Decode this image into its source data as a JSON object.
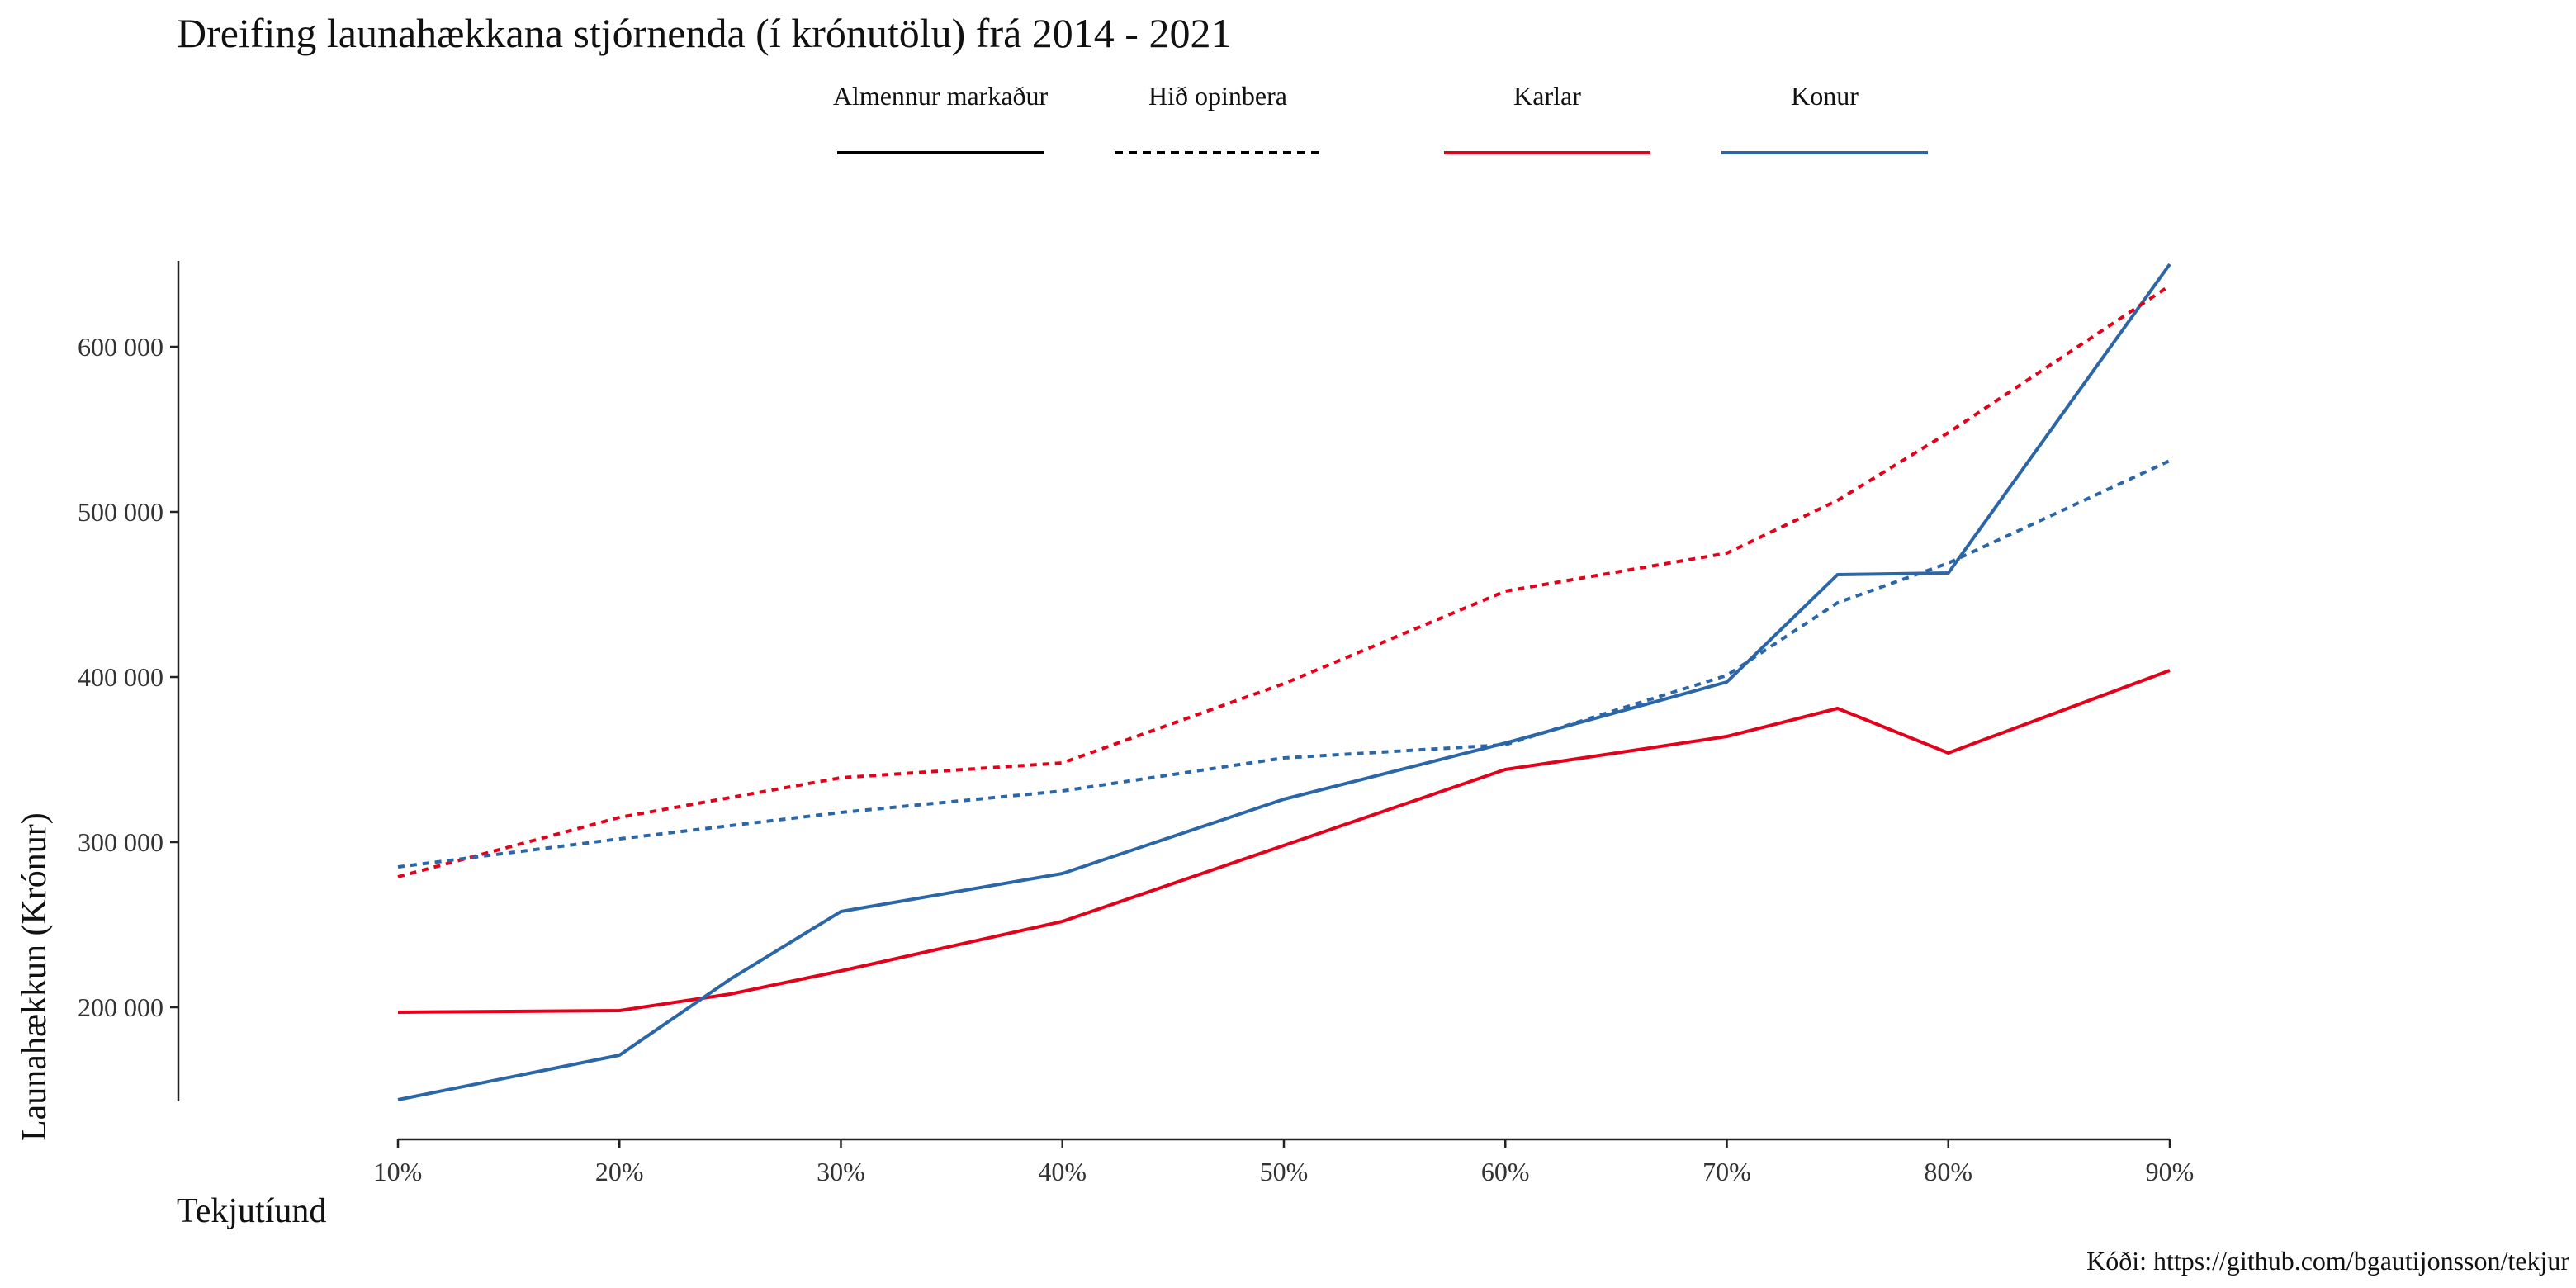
{
  "chart_data": {
    "type": "line",
    "title": "Dreifing launahækkana stjórnenda (í krónutölu) frá 2014 - 2021",
    "xlabel": "Tekjutíund",
    "ylabel": "Launahækkun (Krónur)",
    "caption": "Kóði: https://github.com/bgautijonsson/tekjur",
    "x_ticks": [
      "10%",
      "20%",
      "30%",
      "40%",
      "50%",
      "60%",
      "70%",
      "80%",
      "90%"
    ],
    "xlim": [
      10,
      90
    ],
    "y_ticks": [
      {
        "value": 200000,
        "label": "200 000"
      },
      {
        "value": 300000,
        "label": "300 000"
      },
      {
        "value": 400000,
        "label": "400 000"
      },
      {
        "value": 500000,
        "label": "500 000"
      },
      {
        "value": 600000,
        "label": "600 000"
      }
    ],
    "ylim": [
      143000,
      652000
    ],
    "grid": false,
    "legend": {
      "placement": "top",
      "linetype_entries": [
        {
          "label": "Almennur markaður",
          "linetype": "solid",
          "color": "#000000"
        },
        {
          "label": "Hið opinbera",
          "linetype": "dashed",
          "color": "#000000"
        }
      ],
      "color_entries": [
        {
          "label": "Karlar",
          "color": "#e3001b"
        },
        {
          "label": "Konur",
          "color": "#2b66a8"
        }
      ]
    },
    "series": [
      {
        "sector": "Almennur markaður",
        "sex": "Karlar",
        "color": "#e3001b",
        "linetype": "solid",
        "points": [
          [
            10,
            197000
          ],
          [
            20,
            198000
          ],
          [
            25,
            208000
          ],
          [
            30,
            222000
          ],
          [
            40,
            252000
          ],
          [
            50,
            298000
          ],
          [
            60,
            344000
          ],
          [
            70,
            364000
          ],
          [
            75,
            381000
          ],
          [
            80,
            354000
          ],
          [
            90,
            404000
          ]
        ]
      },
      {
        "sector": "Almennur markaður",
        "sex": "Konur",
        "color": "#2b66a8",
        "linetype": "solid",
        "points": [
          [
            10,
            144000
          ],
          [
            20,
            171000
          ],
          [
            25,
            217000
          ],
          [
            30,
            258000
          ],
          [
            40,
            281000
          ],
          [
            50,
            326000
          ],
          [
            60,
            360000
          ],
          [
            70,
            397000
          ],
          [
            75,
            462000
          ],
          [
            80,
            463000
          ],
          [
            90,
            650000
          ]
        ]
      },
      {
        "sector": "Hið opinbera",
        "sex": "Karlar",
        "color": "#e3001b",
        "linetype": "dashed",
        "points": [
          [
            10,
            279000
          ],
          [
            20,
            315000
          ],
          [
            30,
            339000
          ],
          [
            40,
            348000
          ],
          [
            50,
            396000
          ],
          [
            60,
            452000
          ],
          [
            70,
            475000
          ],
          [
            75,
            507000
          ],
          [
            80,
            548000
          ],
          [
            90,
            637000
          ]
        ]
      },
      {
        "sector": "Hið opinbera",
        "sex": "Konur",
        "color": "#2b66a8",
        "linetype": "dashed",
        "points": [
          [
            10,
            285000
          ],
          [
            20,
            302000
          ],
          [
            30,
            318000
          ],
          [
            40,
            331000
          ],
          [
            50,
            351000
          ],
          [
            60,
            359000
          ],
          [
            70,
            401000
          ],
          [
            75,
            445000
          ],
          [
            80,
            469000
          ],
          [
            90,
            531000
          ]
        ]
      }
    ]
  }
}
